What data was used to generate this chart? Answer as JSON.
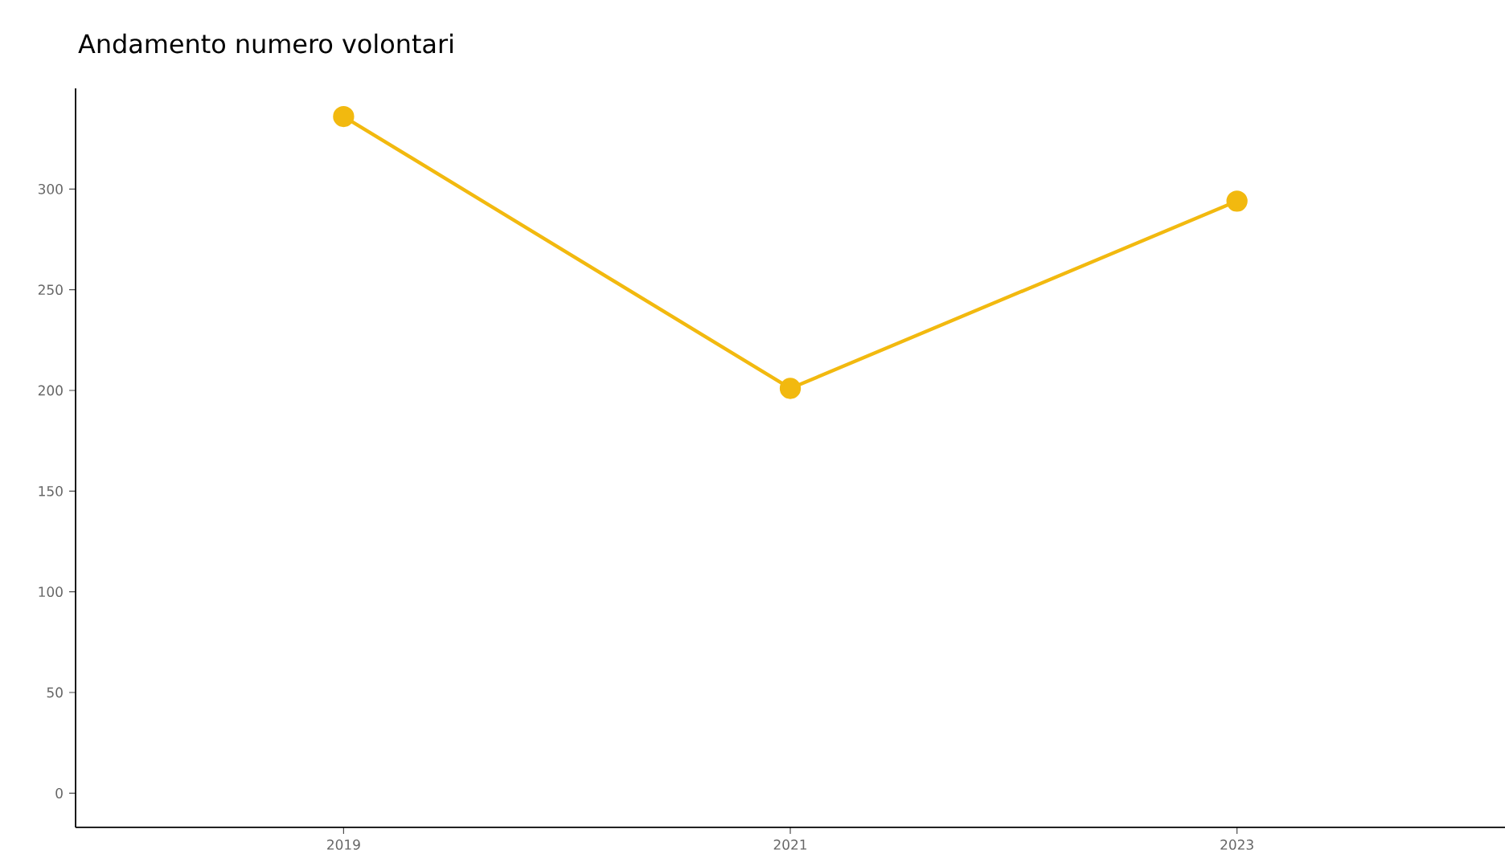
{
  "chart_data": {
    "type": "line",
    "title": "Andamento numero volontari",
    "x": [
      2019,
      2021,
      2023
    ],
    "series": [
      {
        "color": "#f2b90f",
        "values": [
          336,
          201,
          294
        ]
      }
    ],
    "xlim": [
      2017.8,
      2024.2
    ],
    "ylim": [
      -17,
      350
    ],
    "xticks": [
      2019,
      2021,
      2023
    ],
    "yticks": [
      0,
      50,
      100,
      150,
      200,
      250,
      300
    ],
    "marker": "circle",
    "line_style": "solid"
  }
}
